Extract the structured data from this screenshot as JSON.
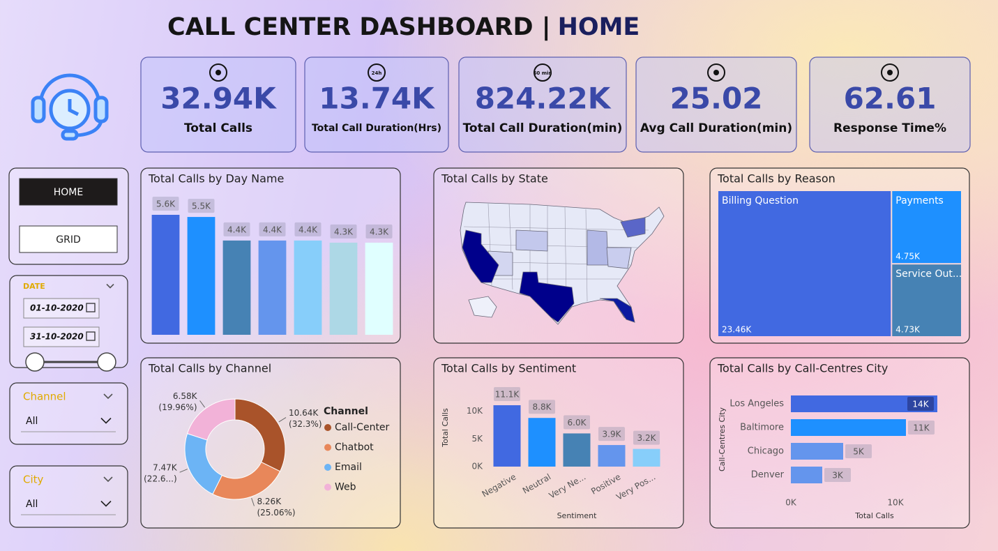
{
  "header": {
    "title": "CALL CENTER DASHBOARD |",
    "page": "HOME"
  },
  "kpis": [
    {
      "value": "32.94K",
      "label": "Total Calls"
    },
    {
      "value": "13.74K",
      "label": "Total Call Duration(Hrs)",
      "icon_text": "24h"
    },
    {
      "value": "824.22K",
      "label": "Total Call Duration(min)",
      "icon_text": "60 min"
    },
    {
      "value": "25.02",
      "label": "Avg Call Duration(min)"
    },
    {
      "value": "62.61",
      "label": "Response Time%"
    }
  ],
  "nav": [
    "HOME",
    "GRID"
  ],
  "date_slicer": {
    "label": "DATE",
    "start": "01-10-2020",
    "end": "31-10-2020"
  },
  "slicers": [
    {
      "label": "Channel",
      "value": "All"
    },
    {
      "label": "City",
      "value": "All"
    }
  ],
  "chart_data": [
    {
      "type": "bar",
      "title": "Total Calls by Day Name",
      "values": [
        5600,
        5500,
        4400,
        4400,
        4400,
        4300,
        4300
      ],
      "value_labels": [
        "5.6K",
        "5.5K",
        "4.4K",
        "4.4K",
        "4.4K",
        "4.3K",
        "4.3K"
      ],
      "colors": [
        "#4169e1",
        "#1e90ff",
        "#4682b4",
        "#6495ed",
        "#87cefa",
        "#add8e6",
        "#e0ffff"
      ]
    },
    {
      "type": "map",
      "title": "Total Calls by State"
    },
    {
      "type": "treemap",
      "title": "Total Calls by Reason",
      "categories": [
        "Billing Question",
        "Payments",
        "Service Out..."
      ],
      "values": [
        23460,
        4750,
        4730
      ],
      "value_labels": [
        "23.46K",
        "4.75K",
        "4.73K"
      ],
      "colors": [
        "#4169e1",
        "#1e90ff",
        "#4682b4"
      ]
    },
    {
      "type": "donut",
      "title": "Total Calls by Channel",
      "legend_title": "Channel",
      "categories": [
        "Call-Center",
        "Chatbot",
        "Email",
        "Web"
      ],
      "values": [
        10640,
        8260,
        7470,
        6580
      ],
      "value_labels": [
        "10.64K",
        "8.26K",
        "7.47K",
        "6.58K"
      ],
      "percent_labels": [
        "(32.3%)",
        "(25.06%)",
        "(22.6...)",
        "(19.96%)"
      ],
      "colors": [
        "#a9532a",
        "#e8875a",
        "#6cb4f5",
        "#f2b2d8"
      ]
    },
    {
      "type": "bar",
      "title": "Total Calls by Sentiment",
      "xlabel": "Sentiment",
      "ylabel": "Total Calls",
      "categories": [
        "Negative",
        "Neutral",
        "Very Ne...",
        "Positive",
        "Very Pos..."
      ],
      "values": [
        11100,
        8800,
        6000,
        3900,
        3200
      ],
      "value_labels": [
        "11.1K",
        "8.8K",
        "6.0K",
        "3.9K",
        "3.2K"
      ],
      "colors": [
        "#4169e1",
        "#1e90ff",
        "#4682b4",
        "#6495ed",
        "#87cefa"
      ],
      "ylim": [
        0,
        14000
      ],
      "yticks": [
        {
          "value": 0,
          "label": "0K"
        },
        {
          "value": 5000,
          "label": "5K"
        },
        {
          "value": 10000,
          "label": "10K"
        }
      ]
    },
    {
      "type": "hbar",
      "title": "Total Calls by Call-Centres City",
      "xlabel": "Total Calls",
      "ylabel": "Call-Centres City",
      "categories": [
        "Los Angeles",
        "Baltimore",
        "Chicago",
        "Denver"
      ],
      "values": [
        14000,
        11000,
        5000,
        3000
      ],
      "value_labels": [
        "14K",
        "11K",
        "5K",
        "3K"
      ],
      "colors": [
        "#4169e1",
        "#1e90ff",
        "#6495ed",
        "#6495ed"
      ],
      "xlim": [
        0,
        16000
      ],
      "xticks": [
        {
          "value": 0,
          "label": "0K"
        },
        {
          "value": 10000,
          "label": "10K"
        }
      ]
    }
  ]
}
